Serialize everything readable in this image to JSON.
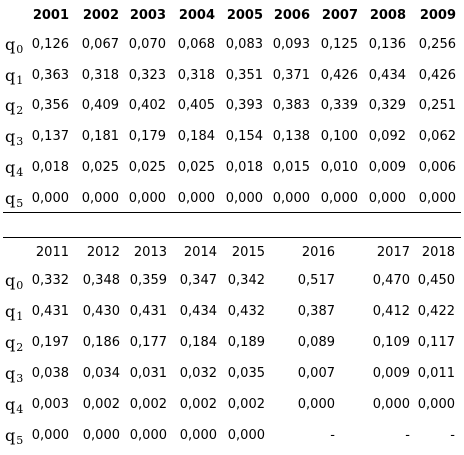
{
  "table1": {
    "headers": [
      "2001",
      "2002",
      "2003",
      "2004",
      "2005",
      "2006",
      "2007",
      "2008",
      "2009"
    ],
    "rows": [
      {
        "label": "q",
        "sub": "0",
        "values": [
          "0,126",
          "0,067",
          "0,070",
          "0,068",
          "0,083",
          "0,093",
          "0,125",
          "0,136",
          "0,256"
        ]
      },
      {
        "label": "q",
        "sub": "1",
        "values": [
          "0,363",
          "0,318",
          "0,323",
          "0,318",
          "0,351",
          "0,371",
          "0,426",
          "0,434",
          "0,426"
        ]
      },
      {
        "label": "q",
        "sub": "2",
        "values": [
          "0,356",
          "0,409",
          "0,402",
          "0,405",
          "0,393",
          "0,383",
          "0,339",
          "0,329",
          "0,251"
        ]
      },
      {
        "label": "q",
        "sub": "3",
        "values": [
          "0,137",
          "0,181",
          "0,179",
          "0,184",
          "0,154",
          "0,138",
          "0,100",
          "0,092",
          "0,062"
        ]
      },
      {
        "label": "q",
        "sub": "4",
        "values": [
          "0,018",
          "0,025",
          "0,025",
          "0,025",
          "0,018",
          "0,015",
          "0,010",
          "0,009",
          "0,006"
        ]
      },
      {
        "label": "q",
        "sub": "5",
        "values": [
          "0,000",
          "0,000",
          "0,000",
          "0,000",
          "0,000",
          "0,000",
          "0,000",
          "0,000",
          "0,000"
        ]
      }
    ]
  },
  "table2": {
    "headers": [
      "2011",
      "2012",
      "2013",
      "2014",
      "2015",
      "2016",
      "2017",
      "2018"
    ],
    "rows": [
      {
        "label": "q",
        "sub": "0",
        "values": [
          "0,332",
          "0,348",
          "0,359",
          "0,347",
          "0,342",
          "0,517",
          "0,470",
          "0,450"
        ]
      },
      {
        "label": "q",
        "sub": "1",
        "values": [
          "0,431",
          "0,430",
          "0,431",
          "0,434",
          "0,432",
          "0,387",
          "0,412",
          "0,422"
        ]
      },
      {
        "label": "q",
        "sub": "2",
        "values": [
          "0,197",
          "0,186",
          "0,177",
          "0,184",
          "0,189",
          "0,089",
          "0,109",
          "0,117"
        ]
      },
      {
        "label": "q",
        "sub": "3",
        "values": [
          "0,038",
          "0,034",
          "0,031",
          "0,032",
          "0,035",
          "0,007",
          "0,009",
          "0,011"
        ]
      },
      {
        "label": "q",
        "sub": "4",
        "values": [
          "0,003",
          "0,002",
          "0,002",
          "0,002",
          "0,002",
          "0,000",
          "0,000",
          "0,000"
        ]
      },
      {
        "label": "q",
        "sub": "5",
        "values": [
          "0,000",
          "0,000",
          "0,000",
          "0,000",
          "0,000",
          "-",
          "-",
          "-"
        ]
      }
    ]
  }
}
